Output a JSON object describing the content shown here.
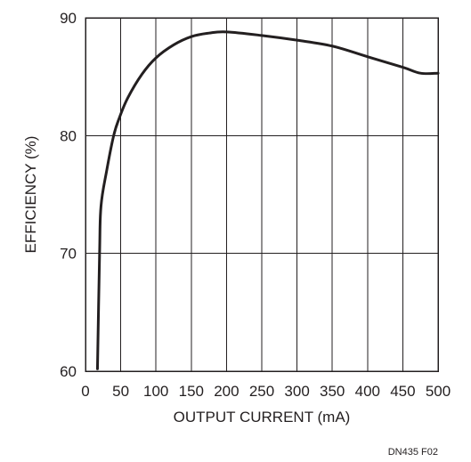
{
  "chart_data": {
    "type": "line",
    "title": "",
    "xlabel": "OUTPUT CURRENT (mA)",
    "ylabel": "EFFICIENCY (%)",
    "xlim": [
      0,
      500
    ],
    "ylim": [
      60,
      90
    ],
    "xticks": [
      0,
      50,
      100,
      150,
      200,
      250,
      300,
      350,
      400,
      450,
      500
    ],
    "yticks": [
      60,
      70,
      80,
      90
    ],
    "x_gridlines": [
      50,
      100,
      150,
      200,
      250,
      300,
      350,
      400,
      450
    ],
    "y_gridlines": [
      70,
      80
    ],
    "grid": true,
    "legend": "none",
    "series": [
      {
        "x": [
          17,
          20,
          22,
          30,
          40,
          48,
          60,
          80,
          100,
          125,
          150,
          175,
          200,
          250,
          300,
          350,
          400,
          450,
          475,
          500
        ],
        "y": [
          60.2,
          70,
          74,
          77,
          80,
          81.5,
          83.2,
          85.2,
          86.6,
          87.7,
          88.4,
          88.7,
          88.8,
          88.5,
          88.1,
          87.6,
          86.7,
          85.8,
          85.3,
          85.3
        ],
        "color": "#231f20"
      }
    ],
    "annotation": "DN435 F02"
  }
}
